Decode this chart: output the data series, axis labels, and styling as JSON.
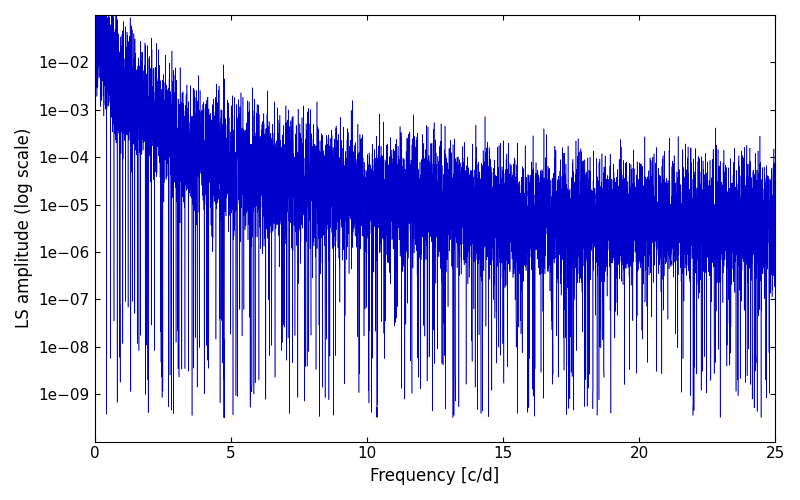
{
  "title": "",
  "xlabel": "Frequency [c/d]",
  "ylabel": "LS amplitude (log scale)",
  "line_color": "#0000cc",
  "xlim": [
    0,
    25
  ],
  "ylim": [
    1e-10,
    0.1
  ],
  "yscale": "log",
  "yticks": [
    1e-09,
    1e-08,
    1e-07,
    1e-06,
    1e-05,
    0.0001,
    0.001,
    0.01
  ],
  "figsize": [
    8.0,
    5.0
  ],
  "dpi": 100,
  "n_points": 12000,
  "seed": 137,
  "background_color": "#ffffff"
}
